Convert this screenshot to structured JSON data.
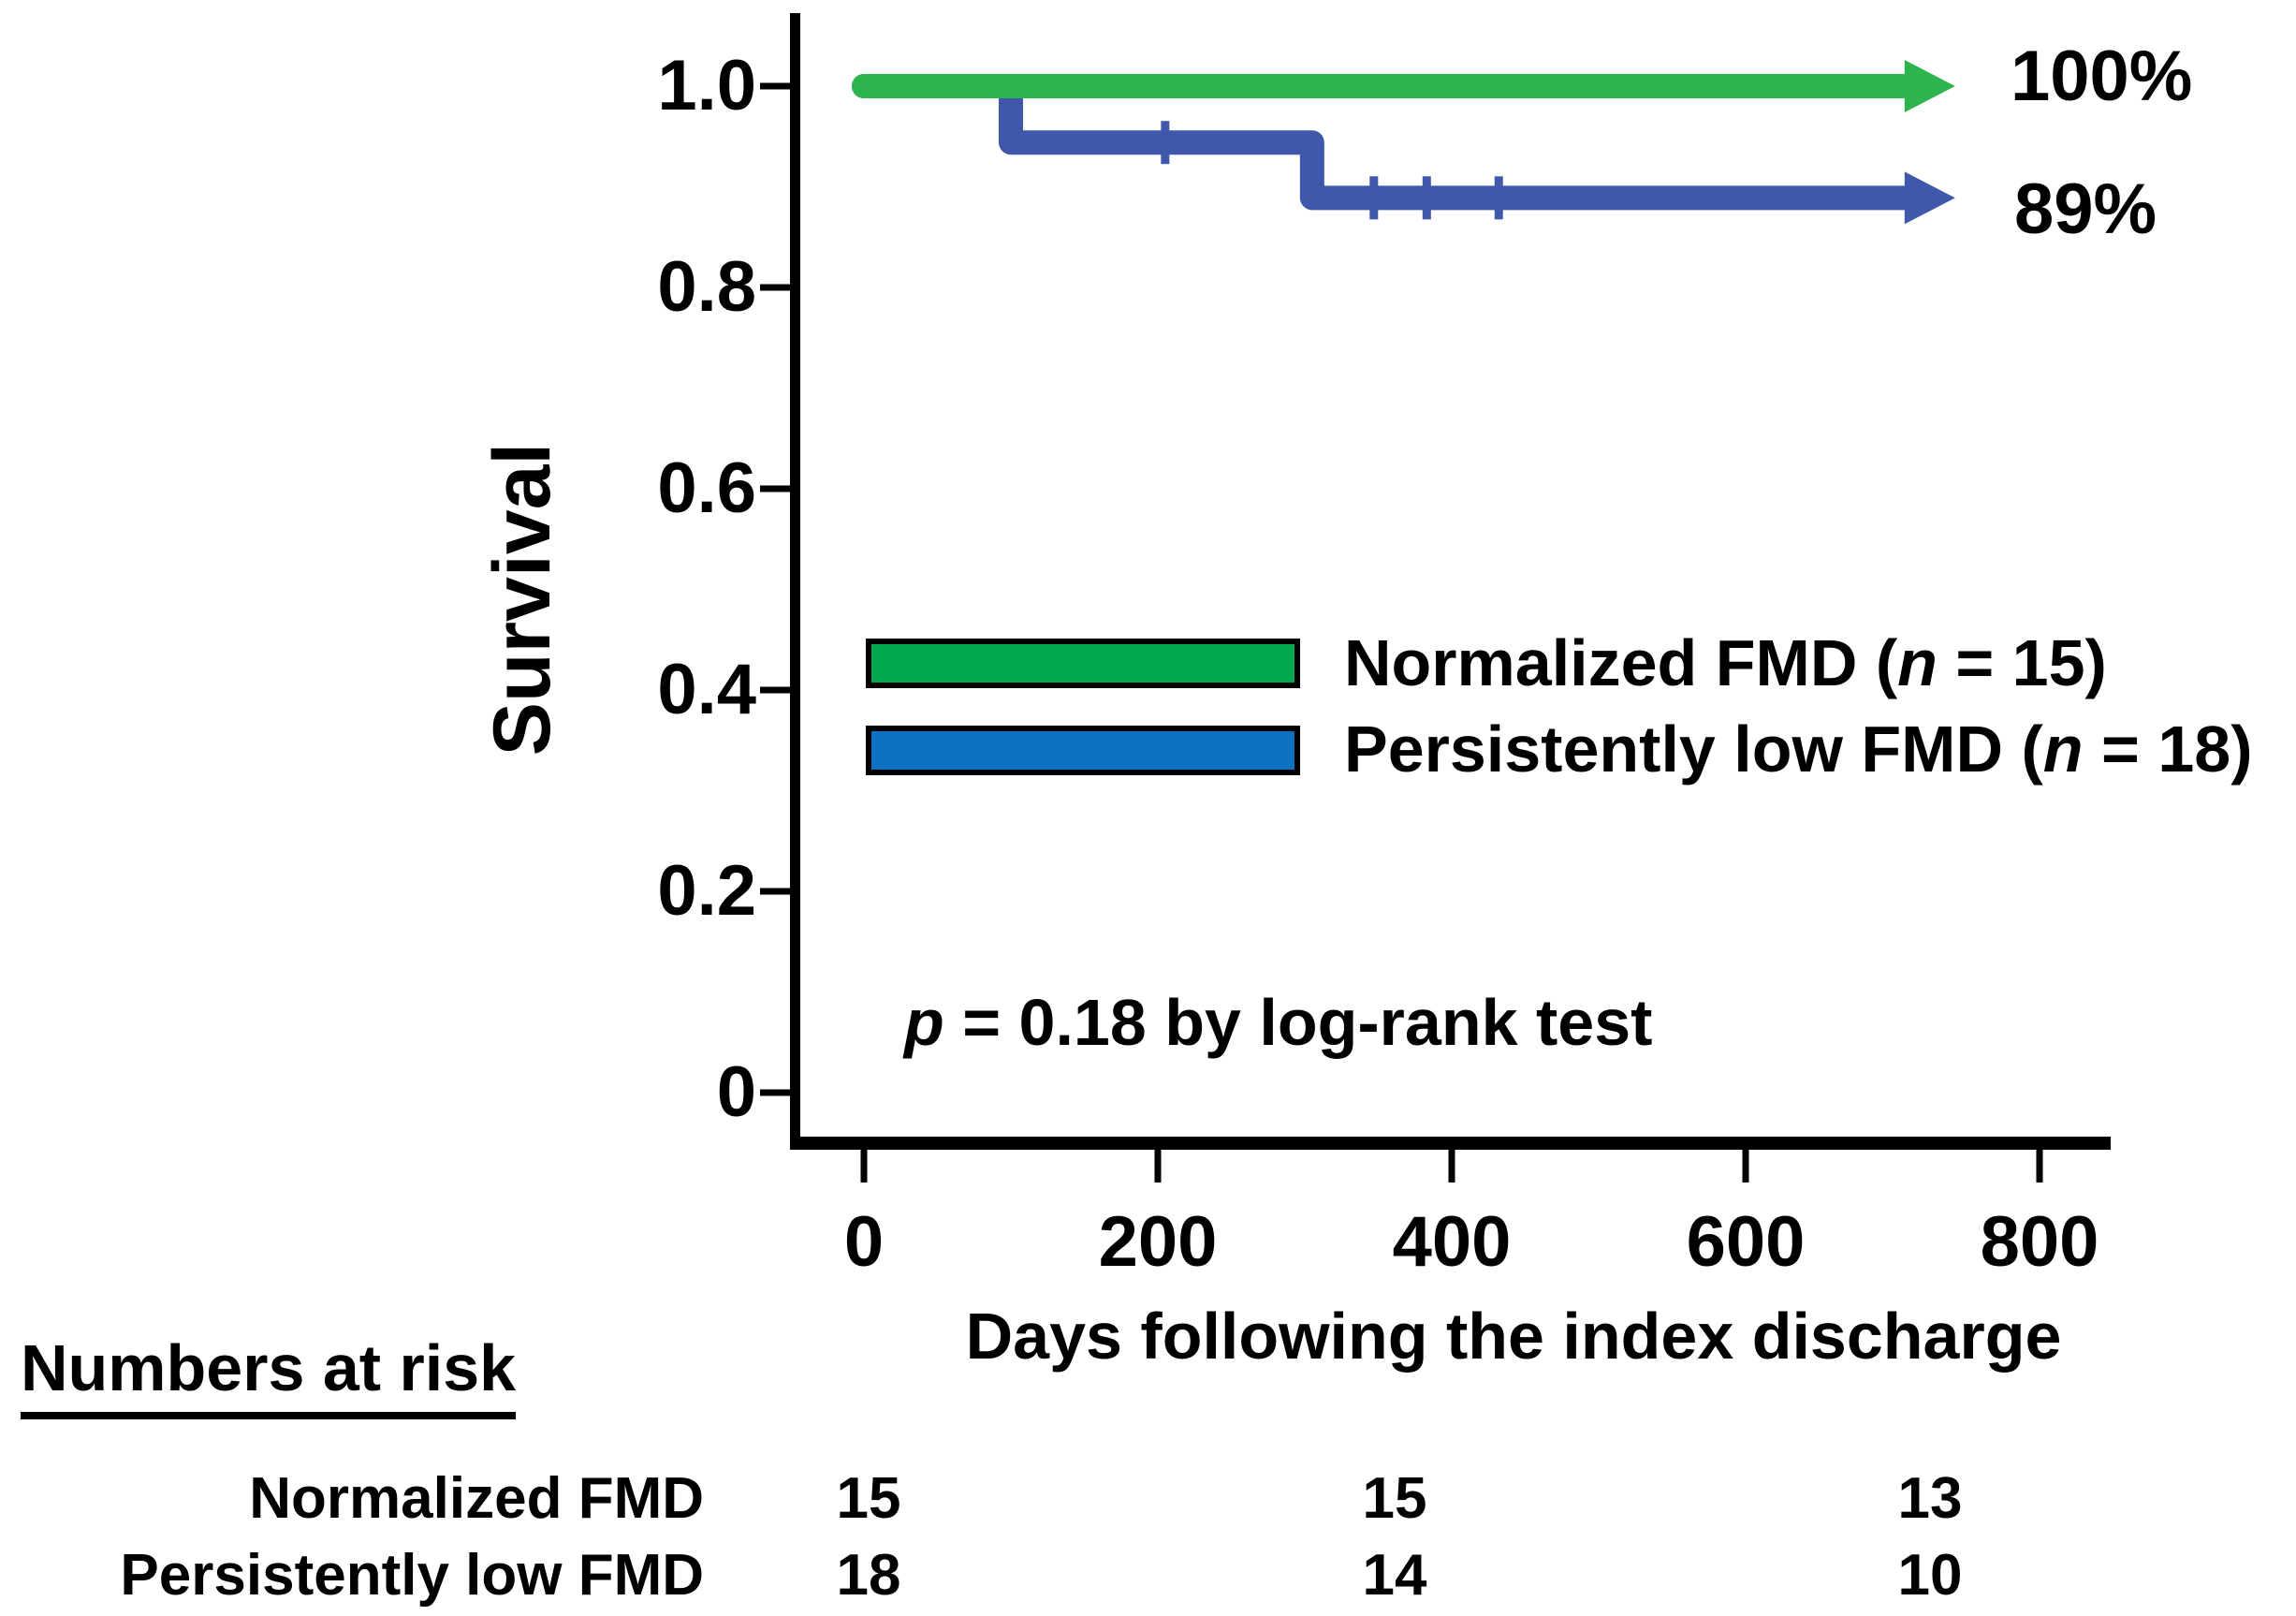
{
  "figure": {
    "type": "kaplan-meier-survival-plot",
    "background": "#ffffff"
  },
  "chart_data": {
    "type": "line",
    "subtype": "kaplan-meier-step",
    "title": "",
    "xlabel": "Days following the index discharge",
    "ylabel": "Survival",
    "xlim": [
      0,
      800
    ],
    "ylim": [
      0,
      1.0
    ],
    "x_ticks": [
      0,
      200,
      400,
      600,
      800
    ],
    "x_tick_labels": [
      "0",
      "200",
      "400",
      "600",
      "800"
    ],
    "y_ticks": [
      1.0,
      0.8,
      0.6,
      0.4,
      0.2,
      0
    ],
    "y_tick_labels": [
      "1.0",
      "0.8",
      "0.6",
      "0.4",
      "0.2",
      "0"
    ],
    "grid": false,
    "series": [
      {
        "name": "Persistently low FMD",
        "n": 18,
        "color": "#3f58ac",
        "end_label": "89%",
        "points": [
          [
            0,
            1.0
          ],
          [
            100,
            1.0
          ],
          [
            100,
            0.944
          ],
          [
            305,
            0.944
          ],
          [
            305,
            0.889
          ],
          [
            740,
            0.889
          ]
        ],
        "censors": [
          [
            205,
            0.944
          ],
          [
            347,
            0.889
          ],
          [
            383,
            0.889
          ],
          [
            432,
            0.889
          ]
        ],
        "arrow_end": true
      },
      {
        "name": "Normalized FMD",
        "n": 15,
        "color": "#2db44c",
        "end_label": "100%",
        "points": [
          [
            0,
            1.0
          ],
          [
            740,
            1.0
          ]
        ],
        "censors": [],
        "arrow_end": true
      }
    ],
    "annotation": "p = 0.18 by log-rank test",
    "legend_position": "center-left inside plot"
  },
  "end_labels": {
    "green": "100%",
    "blue": "89%"
  },
  "legend": {
    "items": [
      {
        "prefix": "Normalized FMD (",
        "n": "n",
        "suffix": " = 15)",
        "color": "#00a94f"
      },
      {
        "prefix": "Persistently low FMD (",
        "n": "n",
        "suffix": " = 18)",
        "color": "#0a72c1"
      }
    ]
  },
  "pvalue": {
    "p": "p",
    "rest": " = 0.18 by log-rank test"
  },
  "numbers_at_risk": {
    "heading": "Numbers at risk",
    "time_points": [
      0,
      365,
      730
    ],
    "rows": [
      {
        "label": "Normalized FMD",
        "values": [
          "15",
          "15",
          "13"
        ]
      },
      {
        "label": "Persistently low FMD",
        "values": [
          "18",
          "14",
          "10"
        ]
      }
    ]
  },
  "colors": {
    "green_line": "#2db44c",
    "blue_line": "#3f58ac",
    "green_legend": "#00a94f",
    "blue_legend": "#0a72c1",
    "axis": "#000000"
  }
}
